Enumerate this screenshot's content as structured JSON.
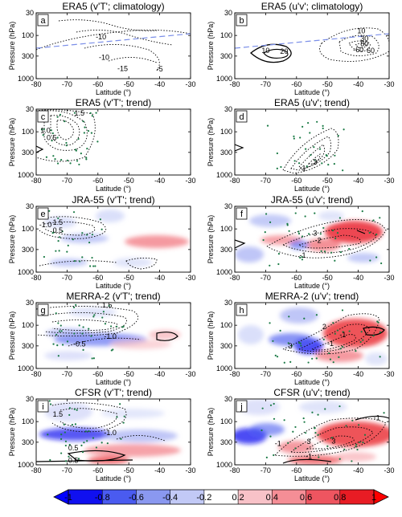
{
  "figure": {
    "x_ticks": [
      "-80",
      "-70",
      "-60",
      "-50",
      "-40",
      "-30"
    ],
    "y_ticks": [
      "30",
      "100",
      "300",
      "1000"
    ],
    "x_label": "Latitude (°)",
    "y_label": "Pressure (hPa)"
  },
  "chart_data": [
    {
      "type": "heatmap",
      "letter": "a",
      "title": "ERA5 (v'T'; climatology)",
      "xlim": [
        -80,
        -30
      ],
      "ylim": [
        30,
        1000
      ],
      "y_scale": "log",
      "contour_labels": [
        {
          "text": "-10",
          "x": -59,
          "y": 110
        },
        {
          "text": "-10",
          "x": -58,
          "y": 330
        },
        {
          "text": "-15",
          "x": -52,
          "y": 600
        },
        {
          "text": "-5",
          "x": -40,
          "y": 620
        }
      ]
    },
    {
      "type": "heatmap",
      "letter": "b",
      "title": "ERA5 (u'v'; climatology)",
      "xlim": [
        -80,
        -30
      ],
      "ylim": [
        30,
        1000
      ],
      "y_scale": "log",
      "contour_labels": [
        {
          "text": "10",
          "x": -70,
          "y": 230
        },
        {
          "text": "20",
          "x": -64,
          "y": 240
        },
        {
          "text": "10",
          "x": -39,
          "y": 80
        },
        {
          "text": "30",
          "x": -38,
          "y": 120
        },
        {
          "text": "-60",
          "x": -40,
          "y": 220
        },
        {
          "text": "60",
          "x": -36,
          "y": 230
        },
        {
          "text": "80",
          "x": -38,
          "y": 160
        }
      ]
    },
    {
      "type": "heatmap",
      "letter": "c",
      "title": "ERA5 (v'T'; trend)",
      "xlim": [
        -80,
        -30
      ],
      "ylim": [
        30,
        1000
      ],
      "y_scale": "log",
      "contour_labels": [
        {
          "text": "1.5",
          "x": -66,
          "y": 38
        },
        {
          "text": "1.0",
          "x": -77,
          "y": 95
        },
        {
          "text": "0.5",
          "x": -75,
          "y": 140
        }
      ]
    },
    {
      "type": "heatmap",
      "letter": "d",
      "title": "ERA5 (u'v'; trend)",
      "xlim": [
        -80,
        -30
      ],
      "ylim": [
        30,
        1000
      ],
      "y_scale": "log",
      "contour_labels": [
        {
          "text": "-1",
          "x": -58,
          "y": 720
        },
        {
          "text": "3",
          "x": -54,
          "y": 520
        }
      ]
    },
    {
      "type": "heatmap",
      "letter": "e",
      "title": "JRA-55 (v'T'; trend)",
      "xlim": [
        -80,
        -30
      ],
      "ylim": [
        30,
        1000
      ],
      "y_scale": "log",
      "contour_labels": [
        {
          "text": "1.5",
          "x": -73,
          "y": 72
        },
        {
          "text": "-1.0",
          "x": -77,
          "y": 82
        },
        {
          "text": "0.5",
          "x": -73,
          "y": 110
        }
      ]
    },
    {
      "type": "heatmap",
      "letter": "f",
      "title": "JRA-55 (u'v'; trend)",
      "xlim": [
        -80,
        -30
      ],
      "ylim": [
        30,
        1000
      ],
      "y_scale": "log",
      "contour_labels": [
        {
          "text": "3",
          "x": -54,
          "y": 130
        },
        {
          "text": "-2",
          "x": -53,
          "y": 190
        },
        {
          "text": "-1",
          "x": -58,
          "y": 420
        }
      ]
    },
    {
      "type": "heatmap",
      "letter": "g",
      "title": "MERRA-2 (v'T'; trend)",
      "xlim": [
        -80,
        -30
      ],
      "ylim": [
        30,
        1000
      ],
      "y_scale": "log",
      "contour_labels": [
        {
          "text": "1.5",
          "x": -57,
          "y": 35
        },
        {
          "text": "-1.0",
          "x": -56,
          "y": 185
        },
        {
          "text": "-0.5",
          "x": -66,
          "y": 280
        }
      ]
    },
    {
      "type": "heatmap",
      "letter": "h",
      "title": "MERRA-2 (u'v'; trend)",
      "xlim": [
        -80,
        -30
      ],
      "ylim": [
        30,
        1000
      ],
      "y_scale": "log",
      "contour_labels": [
        {
          "text": "2",
          "x": -51,
          "y": 110
        },
        {
          "text": "-1",
          "x": -45,
          "y": 170
        },
        {
          "text": "-1",
          "x": -49,
          "y": 270
        },
        {
          "text": "3",
          "x": -62,
          "y": 310
        }
      ]
    },
    {
      "type": "heatmap",
      "letter": "i",
      "title": "CFSR (v'T'; trend)",
      "xlim": [
        -80,
        -30
      ],
      "ylim": [
        30,
        1000
      ],
      "y_scale": "log",
      "contour_labels": [
        {
          "text": "1.5",
          "x": -73,
          "y": 70
        },
        {
          "text": "-1.0",
          "x": -56,
          "y": 185
        },
        {
          "text": "0.5",
          "x": -68,
          "y": 420
        },
        {
          "text": "0.5",
          "x": -68,
          "y": 820
        }
      ]
    },
    {
      "type": "heatmap",
      "letter": "j",
      "title": "CFSR (u'v'; trend)",
      "xlim": [
        -80,
        -30
      ],
      "ylim": [
        30,
        1000
      ],
      "y_scale": "log",
      "contour_labels": [
        {
          "text": "-1",
          "x": -34,
          "y": 85
        },
        {
          "text": "-1",
          "x": -66,
          "y": 330
        },
        {
          "text": "3",
          "x": -56,
          "y": 300
        },
        {
          "text": "3",
          "x": -48,
          "y": 290
        },
        {
          "text": "-1",
          "x": -56,
          "y": 660
        }
      ]
    }
  ],
  "colorbar": {
    "ticks": [
      "-1",
      "-0.8",
      "-0.6",
      "-0.4",
      "-0.2",
      "0.2",
      "0.4",
      "0.6",
      "0.8",
      "1"
    ],
    "values": [
      -1,
      -0.8,
      -0.6,
      -0.4,
      -0.2,
      0.2,
      0.4,
      0.6,
      0.8,
      1
    ],
    "colors": [
      "#1010f0",
      "#4a5bf0",
      "#8a98f0",
      "#c2c9f6",
      "#ffffff",
      "#f8c2c8",
      "#f58e96",
      "#ee5560",
      "#e81c24"
    ],
    "neg_end_color": "#0000ff",
    "pos_end_color": "#ff0000"
  }
}
